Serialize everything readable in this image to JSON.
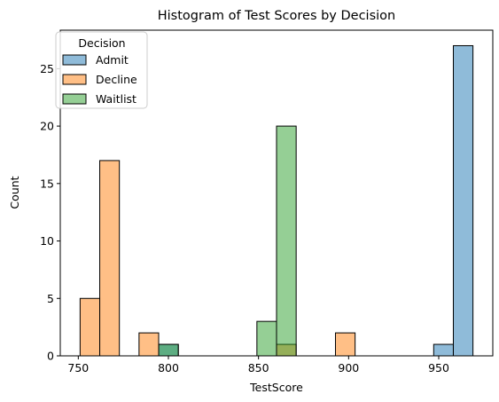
{
  "chart_data": {
    "type": "bar",
    "title": "Histogram of Test Scores by Decision",
    "xlabel": "TestScore",
    "ylabel": "Count",
    "xlim": [
      740,
      980
    ],
    "ylim": [
      0,
      28.35
    ],
    "xticks": [
      750,
      800,
      850,
      900,
      950
    ],
    "yticks": [
      0,
      5,
      10,
      15,
      20,
      25
    ],
    "bin_edges": [
      751,
      761.9,
      772.8,
      783.7,
      794.6,
      805.5,
      816.4,
      827.3,
      838.2,
      849.1,
      860,
      870.9,
      881.8,
      892.7,
      903.6,
      914.5,
      925.4,
      936.3,
      947.2,
      958.1,
      969
    ],
    "grid": false,
    "legend": {
      "title": "Decision",
      "placement": "top-left"
    },
    "series": [
      {
        "name": "Admit",
        "color": "#1f77b4",
        "values": [
          0,
          0,
          0,
          0,
          1,
          0,
          0,
          0,
          0,
          0,
          0,
          0,
          0,
          0,
          0,
          0,
          0,
          0,
          1,
          27
        ]
      },
      {
        "name": "Decline",
        "color": "#ff7f0e",
        "values": [
          5,
          17,
          0,
          2,
          0,
          0,
          0,
          0,
          0,
          0,
          1,
          0,
          0,
          2,
          0,
          0,
          0,
          0,
          0,
          0
        ]
      },
      {
        "name": "Waitlist",
        "color": "#2ca02c",
        "values": [
          0,
          0,
          0,
          0,
          1,
          0,
          0,
          0,
          0,
          3,
          20,
          0,
          0,
          0,
          0,
          0,
          0,
          0,
          0,
          0
        ]
      }
    ]
  }
}
